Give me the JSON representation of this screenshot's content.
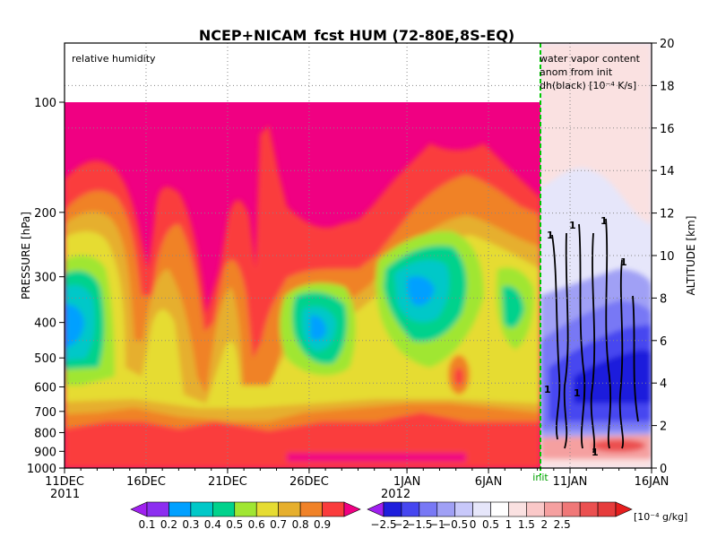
{
  "chart_data": {
    "type": "heatmap",
    "title": "NCEP+NICAM_fcst HUM (72-80E,8S-EQ)",
    "left_label": "relative humidity",
    "right_label_lines": [
      "water vapor content",
      "anom from init",
      "dh(black) [10⁻⁴ K/s]"
    ],
    "init_label": "init",
    "ylabel": "PRESSURE [hPa]",
    "y2label": "ALTITUDE [km]",
    "y_ticks": [
      100,
      200,
      300,
      400,
      500,
      600,
      700,
      800,
      900,
      1000
    ],
    "y2_ticks": [
      0,
      2,
      4,
      6,
      8,
      10,
      12,
      14,
      16,
      18,
      20
    ],
    "x_ticks": [
      "11DEC",
      "16DEC",
      "21DEC",
      "26DEC",
      "1JAN",
      "6JAN",
      "11JAN",
      "16JAN"
    ],
    "x_years": [
      "2011",
      "2012"
    ],
    "contour_label": "1",
    "rh_levels": [
      "0.1",
      "0.2",
      "0.3",
      "0.4",
      "0.5",
      "0.6",
      "0.7",
      "0.8",
      "0.9"
    ],
    "anom_levels": [
      "−2.5",
      "−2",
      "−1.5",
      "−1",
      "−0.5",
      "0",
      "0.5",
      "1",
      "1.5",
      "2",
      "2.5"
    ],
    "anom_unit": "[10⁻⁴ g/kg]",
    "rh_colors": [
      "#a020f0",
      "#8c2ef0",
      "#00a0ff",
      "#00c8c8",
      "#00d28c",
      "#a0e632",
      "#e6dc32",
      "#e6af2d",
      "#f08228",
      "#fa3c3c",
      "#f00082"
    ],
    "anom_colors": [
      "#a020f0",
      "#1e1edc",
      "#4646f0",
      "#7878f5",
      "#a0a0f5",
      "#c8c8fa",
      "#e6e6fa",
      "#ffffff",
      "#fae1e1",
      "#fac8c8",
      "#f5a0a0",
      "#f07878",
      "#eb5050",
      "#e63c3c",
      "#e61e1e"
    ],
    "init_line_color": "#00c800"
  }
}
